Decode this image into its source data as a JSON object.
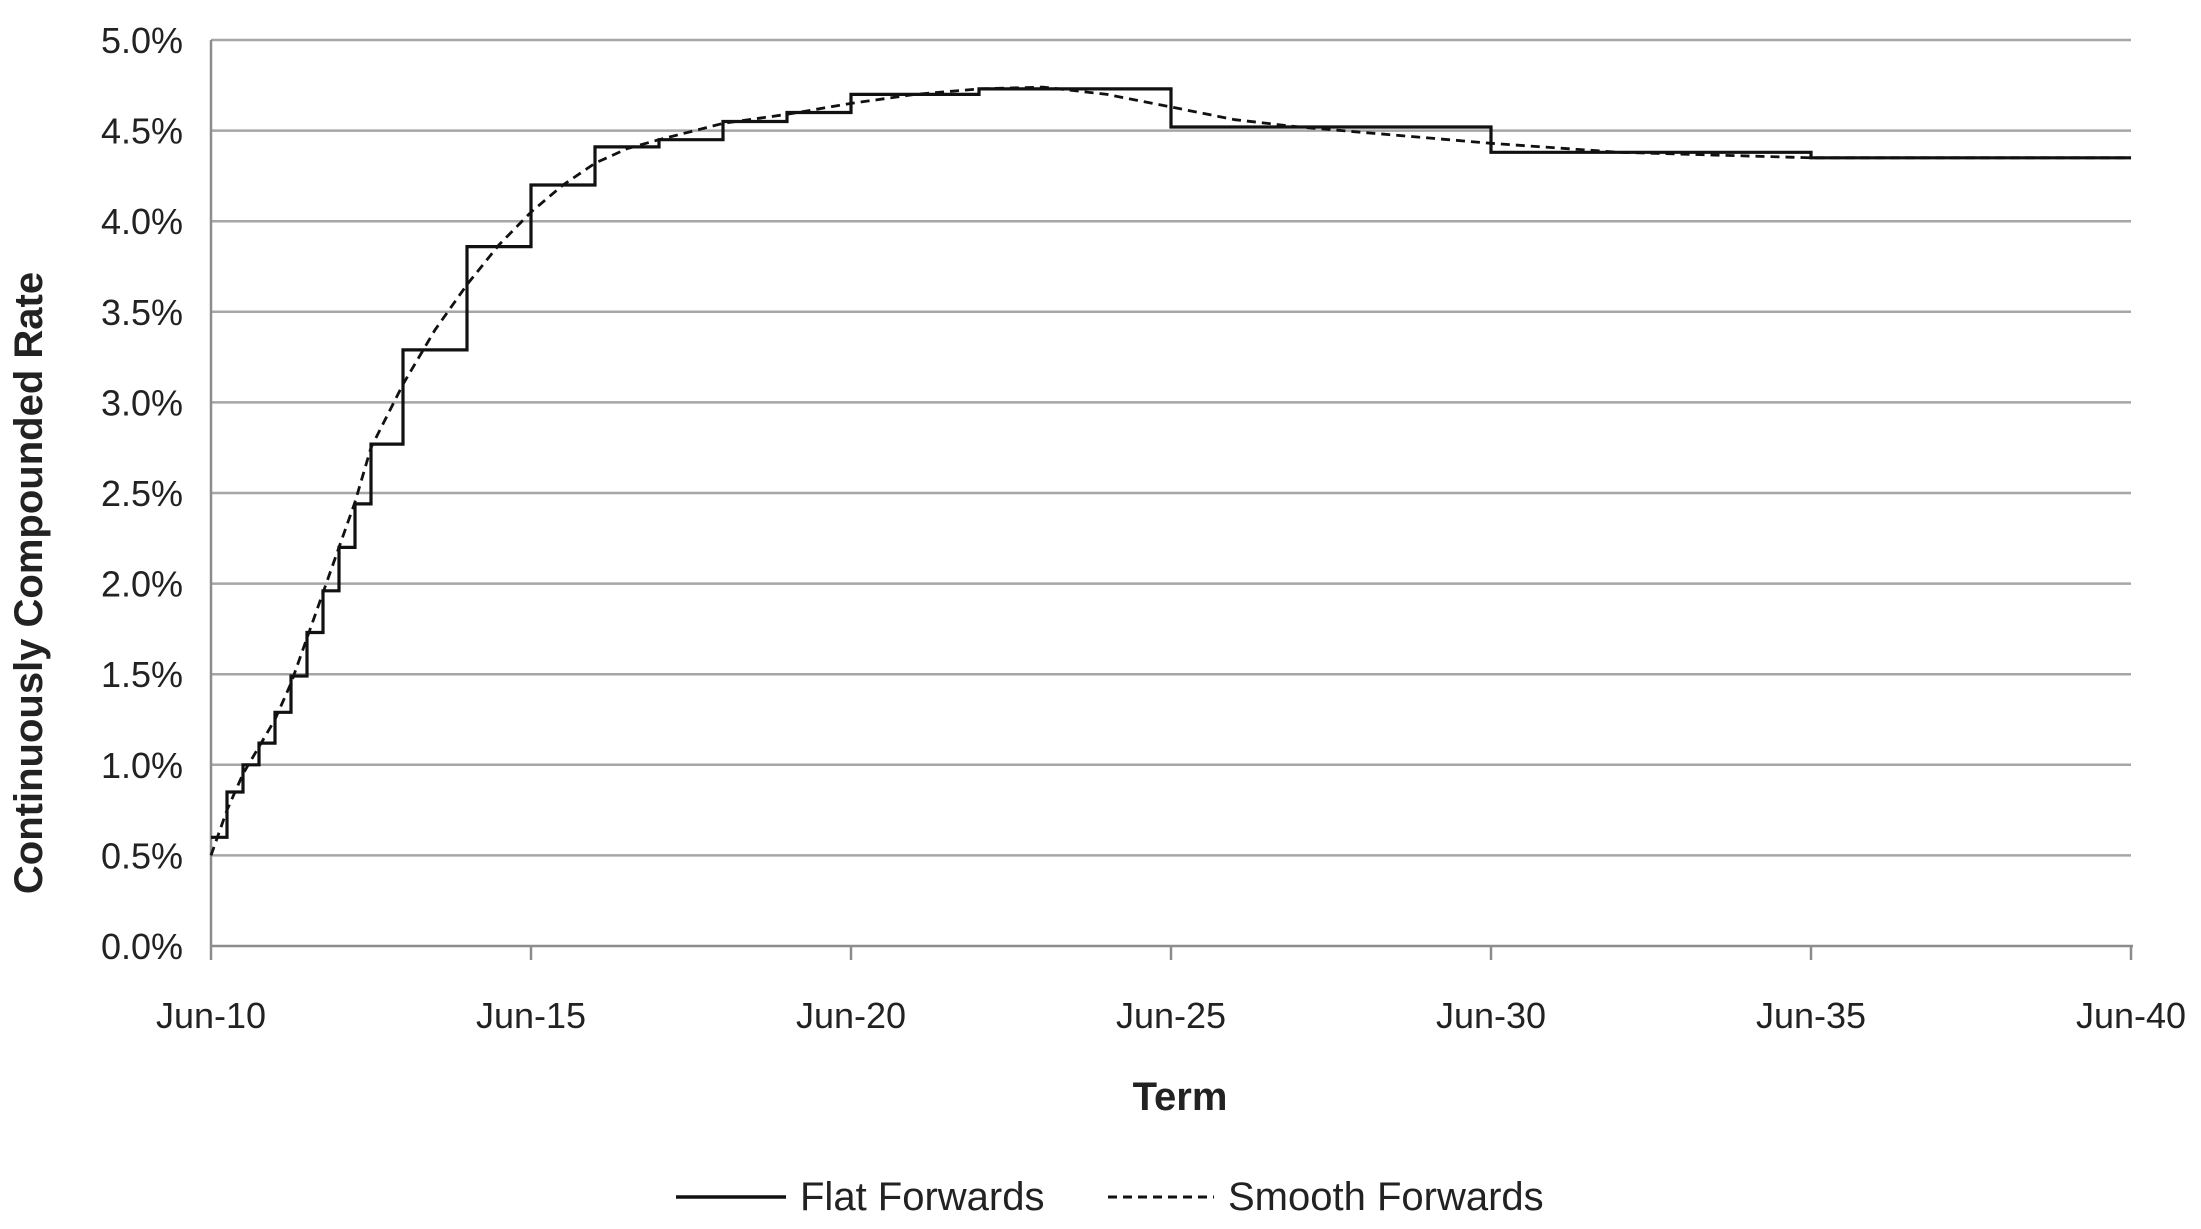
{
  "chart_data": {
    "type": "line",
    "xlabel": "Term",
    "ylabel": "Continuously Compounded Rate",
    "x_ticks": [
      "Jun-10",
      "Jun-15",
      "Jun-20",
      "Jun-25",
      "Jun-30",
      "Jun-35",
      "Jun-40"
    ],
    "y_ticks": [
      "0.0%",
      "0.5%",
      "1.0%",
      "1.5%",
      "2.0%",
      "2.5%",
      "3.0%",
      "3.5%",
      "4.0%",
      "4.5%",
      "5.0%"
    ],
    "xlim": [
      "Jun-10",
      "Jun-40"
    ],
    "ylim": [
      0,
      5.0
    ],
    "y_unit": "%",
    "grid": true,
    "legend": "bottom",
    "series": [
      {
        "name": "Flat Forwards",
        "style": "solid",
        "color": "#111111",
        "step": true,
        "points": [
          [
            "Jun-10",
            0.6
          ],
          [
            "Sep-10",
            0.85
          ],
          [
            "Dec-10",
            1.0
          ],
          [
            "Mar-11",
            1.12
          ],
          [
            "Jun-11",
            1.29
          ],
          [
            "Sep-11",
            1.49
          ],
          [
            "Dec-11",
            1.73
          ],
          [
            "Mar-12",
            1.96
          ],
          [
            "Jun-12",
            2.2
          ],
          [
            "Sep-12",
            2.44
          ],
          [
            "Dec-12",
            2.77
          ],
          [
            "Jun-13",
            3.29
          ],
          [
            "Jun-14",
            3.86
          ],
          [
            "Jun-15",
            4.2
          ],
          [
            "Jun-16",
            4.41
          ],
          [
            "Jun-17",
            4.45
          ],
          [
            "Jun-18",
            4.55
          ],
          [
            "Jun-19",
            4.6
          ],
          [
            "Jun-20",
            4.7
          ],
          [
            "Jun-22",
            4.73
          ],
          [
            "Jun-25",
            4.52
          ],
          [
            "Jun-30",
            4.38
          ],
          [
            "Jun-35",
            4.35
          ],
          [
            "Jun-40",
            4.35
          ]
        ]
      },
      {
        "name": "Smooth Forwards",
        "style": "dashed",
        "color": "#111111",
        "points": [
          [
            "Jun-10",
            0.5
          ],
          [
            "Sep-10",
            0.75
          ],
          [
            "Dec-10",
            0.95
          ],
          [
            "Mar-11",
            1.1
          ],
          [
            "Jun-11",
            1.25
          ],
          [
            "Sep-11",
            1.45
          ],
          [
            "Dec-11",
            1.7
          ],
          [
            "Mar-12",
            1.95
          ],
          [
            "Jun-12",
            2.2
          ],
          [
            "Sep-12",
            2.45
          ],
          [
            "Dec-12",
            2.75
          ],
          [
            "Jun-13",
            3.1
          ],
          [
            "Dec-13",
            3.4
          ],
          [
            "Jun-14",
            3.65
          ],
          [
            "Dec-14",
            3.87
          ],
          [
            "Jun-15",
            4.05
          ],
          [
            "Dec-15",
            4.2
          ],
          [
            "Jun-16",
            4.32
          ],
          [
            "Dec-16",
            4.4
          ],
          [
            "Jun-17",
            4.45
          ],
          [
            "Jun-18",
            4.54
          ],
          [
            "Jun-19",
            4.59
          ],
          [
            "Jun-20",
            4.65
          ],
          [
            "Jun-21",
            4.7
          ],
          [
            "Jun-22",
            4.73
          ],
          [
            "Jun-23",
            4.74
          ],
          [
            "Jun-24",
            4.7
          ],
          [
            "Jun-25",
            4.63
          ],
          [
            "Jun-26",
            4.56
          ],
          [
            "Jun-27",
            4.52
          ],
          [
            "Jun-28",
            4.49
          ],
          [
            "Jun-30",
            4.43
          ],
          [
            "Jun-32",
            4.38
          ],
          [
            "Jun-35",
            4.35
          ],
          [
            "Jun-40",
            4.35
          ]
        ]
      }
    ]
  }
}
